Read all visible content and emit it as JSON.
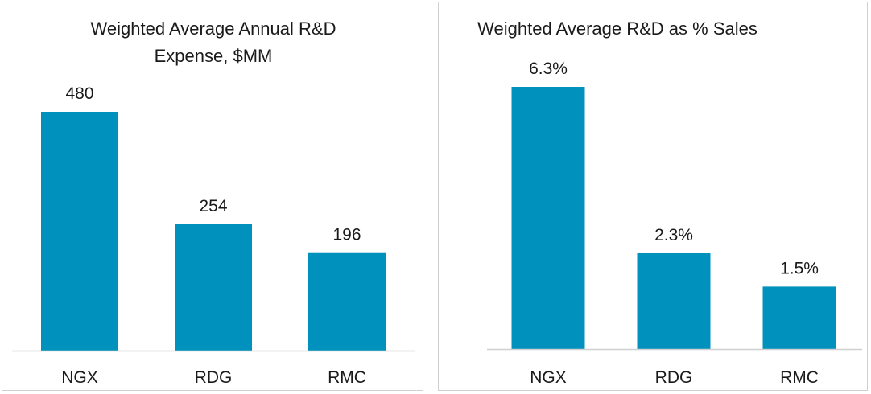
{
  "chart_data": [
    {
      "type": "bar",
      "title_lines": [
        "Weighted Average Annual R&D",
        "Expense, $MM"
      ],
      "categories": [
        "NGX",
        "RDG",
        "RMC"
      ],
      "values": [
        480,
        254,
        196
      ],
      "value_labels": [
        "480",
        "254",
        "196"
      ],
      "xlabel": "",
      "ylabel": "",
      "ylim": [
        0,
        480
      ],
      "grid": false,
      "legend": "none",
      "bar_color": "#0091BD"
    },
    {
      "type": "bar",
      "title_lines": [
        "Weighted Average R&D as % Sales"
      ],
      "categories": [
        "NGX",
        "RDG",
        "RMC"
      ],
      "values": [
        6.3,
        2.3,
        1.5
      ],
      "value_labels": [
        "6.3%",
        "2.3%",
        "1.5%"
      ],
      "xlabel": "",
      "ylabel": "",
      "ylim": [
        0,
        6.3
      ],
      "grid": false,
      "legend": "none",
      "bar_color": "#0091BD"
    }
  ]
}
